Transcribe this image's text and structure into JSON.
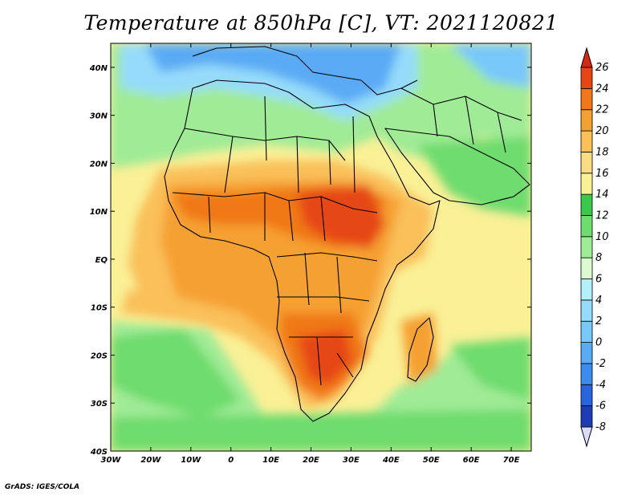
{
  "title": "Temperature at 850hPa [C], VT: 2021120821",
  "footer": "GrADS: IGES/COLA",
  "map": {
    "lon_range": [
      -30,
      75
    ],
    "lat_range": [
      -40,
      45
    ],
    "lon_ticks": [
      {
        "value": -30,
        "label": "30W"
      },
      {
        "value": -20,
        "label": "20W"
      },
      {
        "value": -10,
        "label": "10W"
      },
      {
        "value": 0,
        "label": "0"
      },
      {
        "value": 10,
        "label": "10E"
      },
      {
        "value": 20,
        "label": "20E"
      },
      {
        "value": 30,
        "label": "30E"
      },
      {
        "value": 40,
        "label": "40E"
      },
      {
        "value": 50,
        "label": "50E"
      },
      {
        "value": 60,
        "label": "60E"
      },
      {
        "value": 70,
        "label": "70E"
      }
    ],
    "lat_ticks": [
      {
        "value": 40,
        "label": "40N"
      },
      {
        "value": 30,
        "label": "30N"
      },
      {
        "value": 20,
        "label": "20N"
      },
      {
        "value": 10,
        "label": "10N"
      },
      {
        "value": 0,
        "label": "EQ"
      },
      {
        "value": -10,
        "label": "10S"
      },
      {
        "value": -20,
        "label": "20S"
      },
      {
        "value": -30,
        "label": "30S"
      },
      {
        "value": -40,
        "label": "40S"
      }
    ]
  },
  "colorbar": {
    "levels": [
      {
        "value": -8,
        "label": "-8",
        "color": "#14148c"
      },
      {
        "value": -6,
        "label": "-6",
        "color": "#1e3cb4"
      },
      {
        "value": -4,
        "label": "-4",
        "color": "#2864dc"
      },
      {
        "value": -2,
        "label": "-2",
        "color": "#3c8cf0"
      },
      {
        "value": 0,
        "label": "0",
        "color": "#5aaaf5"
      },
      {
        "value": 2,
        "label": "2",
        "color": "#78c8fa"
      },
      {
        "value": 4,
        "label": "4",
        "color": "#96dcfa"
      },
      {
        "value": 6,
        "label": "6",
        "color": "#b4f0fa"
      },
      {
        "value": 8,
        "label": "8",
        "color": "#dcfad2"
      },
      {
        "value": 10,
        "label": "10",
        "color": "#a0eb96"
      },
      {
        "value": 12,
        "label": "12",
        "color": "#6edc6e"
      },
      {
        "value": 14,
        "label": "14",
        "color": "#3cc84b"
      },
      {
        "value": 16,
        "label": "16",
        "color": "#faf096"
      },
      {
        "value": 18,
        "label": "18",
        "color": "#fadc82"
      },
      {
        "value": 20,
        "label": "20",
        "color": "#fac05a"
      },
      {
        "value": 22,
        "label": "22",
        "color": "#f5a032"
      },
      {
        "value": 24,
        "label": "24",
        "color": "#f07818"
      },
      {
        "value": 26,
        "label": "26",
        "color": "#e64614"
      }
    ],
    "under_color": "#dcdcff",
    "over_color": "#d22814"
  }
}
